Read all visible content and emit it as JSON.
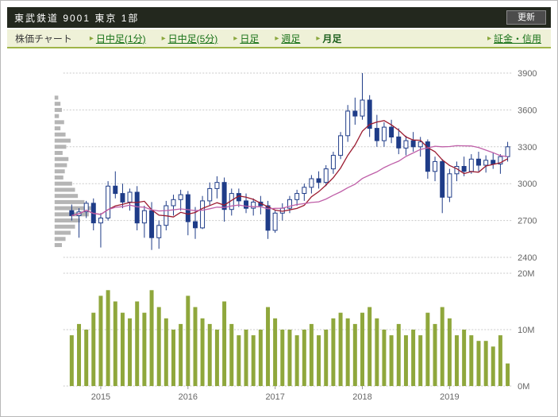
{
  "header": {
    "title": "東武鉄道 9001 東京 1部",
    "refresh_label": "更新"
  },
  "nav": {
    "label": "株価チャート",
    "tab_arrow": "▸",
    "tabs": [
      {
        "label": "日中足(1分)",
        "active": false
      },
      {
        "label": "日中足(5分)",
        "active": false
      },
      {
        "label": "日足",
        "active": false
      },
      {
        "label": "週足",
        "active": false
      },
      {
        "label": "月足",
        "active": true
      }
    ],
    "right_link": "証金・信用"
  },
  "chart_data": {
    "type": "candlestick",
    "timeframe": "monthly",
    "price_axis": {
      "min": 2400,
      "max": 3900,
      "ticks": [
        2400,
        2700,
        3000,
        3300,
        3600,
        3900
      ]
    },
    "volume_axis": {
      "max_m": 20,
      "ticks": [
        {
          "v": 0,
          "label": "0M"
        },
        {
          "v": 10,
          "label": "10M"
        },
        {
          "v": 20,
          "label": "20M"
        }
      ]
    },
    "year_ticks": [
      {
        "i": 4,
        "label": "2015"
      },
      {
        "i": 16,
        "label": "2016"
      },
      {
        "i": 28,
        "label": "2017"
      },
      {
        "i": 40,
        "label": "2018"
      },
      {
        "i": 52,
        "label": "2019"
      }
    ],
    "columns": [
      "open",
      "high",
      "low",
      "close",
      "volume_millions"
    ],
    "candles": [
      [
        2780,
        2830,
        2700,
        2740,
        9
      ],
      [
        2740,
        2800,
        2560,
        2770,
        11
      ],
      [
        2770,
        2860,
        2720,
        2840,
        10
      ],
      [
        2840,
        2880,
        2620,
        2680,
        13
      ],
      [
        2680,
        2760,
        2480,
        2720,
        16
      ],
      [
        2720,
        3020,
        2700,
        2980,
        17
      ],
      [
        2980,
        3100,
        2880,
        2920,
        15
      ],
      [
        2920,
        3000,
        2800,
        2850,
        13
      ],
      [
        2850,
        2960,
        2780,
        2930,
        12
      ],
      [
        2930,
        2980,
        2620,
        2680,
        15
      ],
      [
        2680,
        2820,
        2560,
        2780,
        13
      ],
      [
        2780,
        2850,
        2460,
        2560,
        17
      ],
      [
        2560,
        2700,
        2470,
        2660,
        14
      ],
      [
        2660,
        2860,
        2620,
        2820,
        12
      ],
      [
        2820,
        2910,
        2740,
        2870,
        10
      ],
      [
        2870,
        2950,
        2780,
        2910,
        11
      ],
      [
        2910,
        2940,
        2580,
        2690,
        16
      ],
      [
        2690,
        2810,
        2550,
        2640,
        14
      ],
      [
        2640,
        2900,
        2630,
        2860,
        12
      ],
      [
        2860,
        3010,
        2820,
        2960,
        11
      ],
      [
        2960,
        3060,
        2880,
        3010,
        10
      ],
      [
        3010,
        3050,
        2690,
        2790,
        15
      ],
      [
        2790,
        2960,
        2740,
        2920,
        11
      ],
      [
        2920,
        2960,
        2810,
        2860,
        9
      ],
      [
        2860,
        2920,
        2760,
        2800,
        10
      ],
      [
        2800,
        2880,
        2740,
        2850,
        9
      ],
      [
        2850,
        2900,
        2750,
        2820,
        10
      ],
      [
        2820,
        2860,
        2550,
        2620,
        14
      ],
      [
        2620,
        2780,
        2600,
        2760,
        12
      ],
      [
        2760,
        2840,
        2700,
        2800,
        10
      ],
      [
        2800,
        2900,
        2760,
        2870,
        10
      ],
      [
        2870,
        2950,
        2820,
        2920,
        9
      ],
      [
        2920,
        3000,
        2860,
        2970,
        10
      ],
      [
        2970,
        3070,
        2920,
        3040,
        11
      ],
      [
        3040,
        3100,
        2960,
        3010,
        9
      ],
      [
        3010,
        3150,
        2980,
        3120,
        10
      ],
      [
        3120,
        3260,
        3080,
        3230,
        12
      ],
      [
        3230,
        3420,
        3200,
        3390,
        13
      ],
      [
        3390,
        3640,
        3340,
        3590,
        12
      ],
      [
        3590,
        3700,
        3480,
        3550,
        11
      ],
      [
        3550,
        3900,
        3520,
        3680,
        13
      ],
      [
        3680,
        3720,
        3380,
        3450,
        14
      ],
      [
        3450,
        3560,
        3300,
        3350,
        12
      ],
      [
        3350,
        3500,
        3300,
        3460,
        10
      ],
      [
        3460,
        3520,
        3330,
        3380,
        9
      ],
      [
        3380,
        3450,
        3240,
        3290,
        11
      ],
      [
        3290,
        3390,
        3230,
        3350,
        9
      ],
      [
        3350,
        3420,
        3260,
        3300,
        10
      ],
      [
        3300,
        3380,
        3220,
        3340,
        9
      ],
      [
        3340,
        3360,
        3040,
        3100,
        13
      ],
      [
        3100,
        3220,
        3020,
        3180,
        11
      ],
      [
        3180,
        3200,
        2760,
        2890,
        14
      ],
      [
        2890,
        3120,
        2850,
        3080,
        12
      ],
      [
        3080,
        3180,
        3020,
        3140,
        9
      ],
      [
        3140,
        3220,
        3060,
        3100,
        10
      ],
      [
        3100,
        3240,
        3080,
        3200,
        9
      ],
      [
        3200,
        3260,
        3100,
        3150,
        8
      ],
      [
        3150,
        3230,
        3090,
        3190,
        8
      ],
      [
        3190,
        3250,
        3120,
        3160,
        7
      ],
      [
        3160,
        3240,
        3080,
        3220,
        9
      ],
      [
        3220,
        3340,
        3180,
        3300,
        4
      ]
    ],
    "ma": [
      {
        "name": "ma-short",
        "window": 6,
        "color": "#9b1b30"
      },
      {
        "name": "ma-long",
        "window": 19,
        "color": "#bf5fa8"
      }
    ],
    "volume_by_price": {
      "min_price": 2500,
      "price_step": 50,
      "weights": [
        0.2,
        0.3,
        0.44,
        0.56,
        0.7,
        0.94,
        1.0,
        0.82,
        0.64,
        0.56,
        0.48,
        0.24,
        0.28,
        0.34,
        0.38,
        0.22,
        0.32,
        0.44,
        0.3,
        0.16,
        0.26,
        0.12,
        0.2,
        0.16,
        0.1
      ]
    },
    "colors": {
      "up_fill": "#ffffff",
      "down_fill": "#1f3c88",
      "candle_stroke": "#1f3c88",
      "volume": "#8fa73c",
      "vbp": "#b5b5b5",
      "grid": "#c9c9c9",
      "axis_text": "#666666"
    }
  }
}
